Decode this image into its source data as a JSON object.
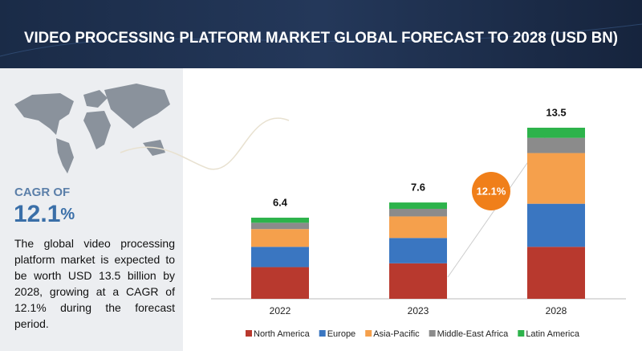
{
  "title": "VIDEO PROCESSING PLATFORM MARKET GLOBAL FORECAST TO 2028 (USD BN)",
  "cagr": {
    "label": "CAGR OF",
    "value": "12.1",
    "unit": "%"
  },
  "description": "The global video processing platform market is expected to be worth USD 13.5 billion by 2028, growing at a CAGR of 12.1% during the forecast period.",
  "chart_data": {
    "type": "stacked_bar",
    "categories": [
      "2022",
      "2023",
      "2028"
    ],
    "totals": [
      6.4,
      7.6,
      13.5
    ],
    "cagr_badge": "12.1%",
    "series": [
      {
        "name": "North America",
        "color": "#b8392e",
        "values": [
          2.5,
          2.8,
          4.1
        ]
      },
      {
        "name": "Europe",
        "color": "#3a76c1",
        "values": [
          1.6,
          2.0,
          3.4
        ]
      },
      {
        "name": "Asia-Pacific",
        "color": "#f5a04c",
        "values": [
          1.4,
          1.7,
          4.0
        ]
      },
      {
        "name": "Middle-East Africa",
        "color": "#8b8b8b",
        "values": [
          0.5,
          0.6,
          1.2
        ]
      },
      {
        "name": "Latin America",
        "color": "#2db34b",
        "values": [
          0.4,
          0.5,
          0.8
        ]
      }
    ]
  }
}
